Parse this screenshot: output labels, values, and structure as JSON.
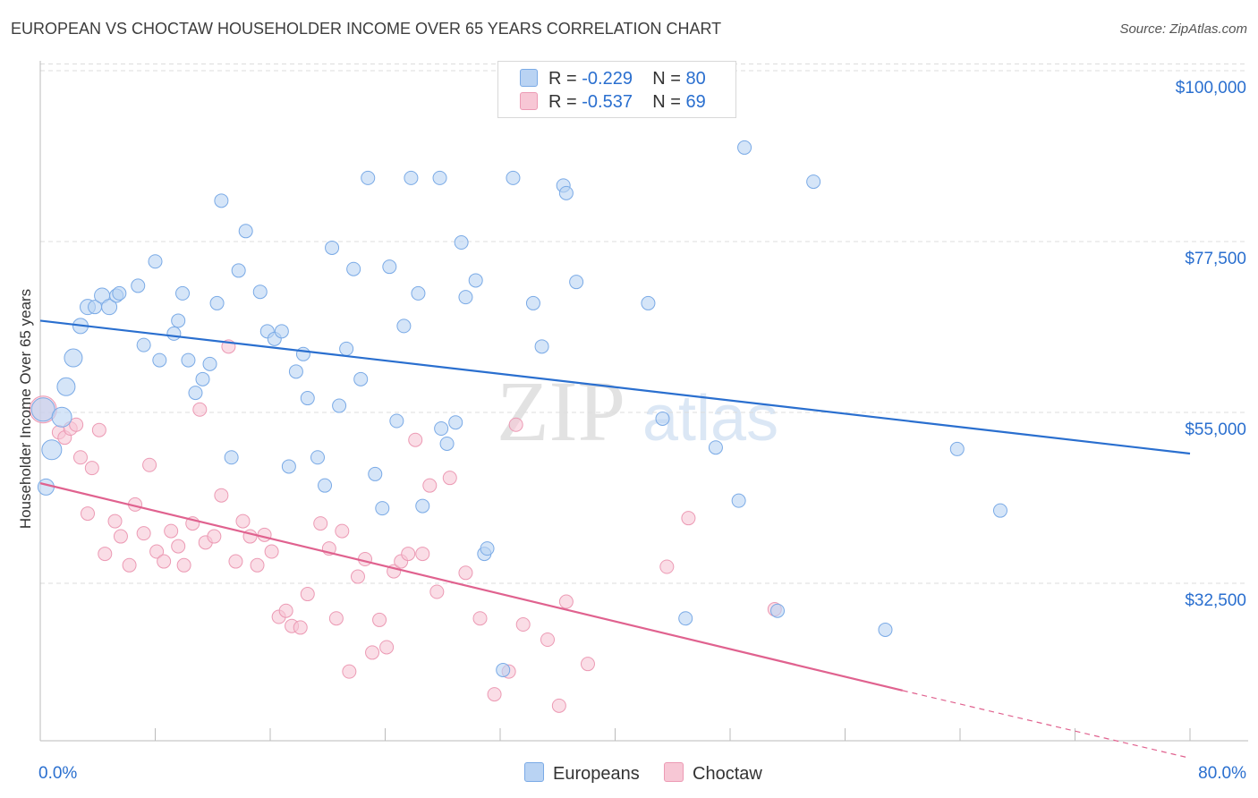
{
  "title": "EUROPEAN VS CHOCTAW HOUSEHOLDER INCOME OVER 65 YEARS CORRELATION CHART",
  "source": "Source: ZipAtlas.com",
  "colors": {
    "blue_fill": "#b9d3f3",
    "blue_stroke": "#7aaae6",
    "blue_line": "#2a6fcf",
    "pink_fill": "#f7c7d5",
    "pink_stroke": "#ec9ab4",
    "pink_line": "#e0628f",
    "axis_text": "#2a6fcf",
    "grid": "#dddddd"
  },
  "legend": {
    "rows": [
      {
        "r_label": "R = ",
        "r_value": "-0.229",
        "n_label": "N = ",
        "n_value": "80"
      },
      {
        "r_label": "R = ",
        "r_value": "-0.537",
        "n_label": "N = ",
        "n_value": "69"
      }
    ]
  },
  "bottom_legend": [
    "Europeans",
    "Choctaw"
  ],
  "chart_data": {
    "type": "scatter",
    "title": "EUROPEAN VS CHOCTAW HOUSEHOLDER INCOME OVER 65 YEARS CORRELATION CHART",
    "xlabel": "",
    "ylabel": "Householder Income Over 65 years",
    "xlim": [
      0,
      80
    ],
    "ylim": [
      13000,
      103000
    ],
    "x_tick_labels": [
      "0.0%",
      "80.0%"
    ],
    "y_ticks": [
      32500,
      55000,
      77500,
      100000
    ],
    "y_tick_labels": [
      "$32,500",
      "$55,000",
      "$77,500",
      "$100,000"
    ],
    "grid": true,
    "legend_placement": "top-center",
    "watermark": "ZIPatlas",
    "series": [
      {
        "name": "Europeans",
        "r": -0.229,
        "n": 80,
        "trend": {
          "x": [
            0,
            80
          ],
          "y": [
            69200,
            51700
          ]
        },
        "points": [
          [
            0.2,
            57.5,
            26
          ],
          [
            1.5,
            56.5,
            22
          ],
          [
            0.8,
            52.2,
            22
          ],
          [
            1.8,
            60.5,
            20
          ],
          [
            2.3,
            64.3,
            20
          ],
          [
            0.4,
            47.3,
            18
          ],
          [
            2.8,
            68.5,
            17
          ],
          [
            3.3,
            71.0,
            17
          ],
          [
            3.8,
            71.0,
            15
          ],
          [
            4.3,
            72.5,
            17
          ],
          [
            4.8,
            71.0,
            17
          ],
          [
            5.3,
            72.5,
            15
          ],
          [
            5.5,
            72.8,
            15
          ],
          [
            6.8,
            73.8,
            15
          ],
          [
            7.2,
            66.0,
            15
          ],
          [
            8.0,
            77.0,
            15
          ],
          [
            8.3,
            64.0,
            15
          ],
          [
            9.3,
            67.5,
            15
          ],
          [
            9.6,
            69.2,
            15
          ],
          [
            9.9,
            72.8,
            15
          ],
          [
            10.3,
            64.0,
            15
          ],
          [
            10.8,
            59.7,
            15
          ],
          [
            11.3,
            61.5,
            15
          ],
          [
            11.8,
            63.5,
            15
          ],
          [
            12.3,
            71.5,
            15
          ],
          [
            12.6,
            85.0,
            15
          ],
          [
            13.3,
            51.2,
            15
          ],
          [
            13.8,
            75.8,
            15
          ],
          [
            14.3,
            81.0,
            15
          ],
          [
            15.3,
            73.0,
            15
          ],
          [
            15.8,
            67.8,
            15
          ],
          [
            16.3,
            66.8,
            15
          ],
          [
            16.8,
            67.8,
            15
          ],
          [
            17.3,
            50.0,
            15
          ],
          [
            17.8,
            62.5,
            15
          ],
          [
            18.3,
            64.8,
            15
          ],
          [
            18.6,
            59.0,
            15
          ],
          [
            19.3,
            51.2,
            15
          ],
          [
            19.8,
            47.5,
            15
          ],
          [
            20.3,
            78.8,
            15
          ],
          [
            20.8,
            58.0,
            15
          ],
          [
            21.3,
            65.5,
            15
          ],
          [
            21.8,
            76.0,
            15
          ],
          [
            22.3,
            61.5,
            15
          ],
          [
            22.8,
            88.0,
            15
          ],
          [
            23.3,
            49.0,
            15
          ],
          [
            23.8,
            44.5,
            15
          ],
          [
            24.3,
            76.3,
            15
          ],
          [
            24.8,
            56.0,
            15
          ],
          [
            25.3,
            68.5,
            15
          ],
          [
            25.8,
            88.0,
            15
          ],
          [
            26.3,
            72.8,
            15
          ],
          [
            26.6,
            44.8,
            15
          ],
          [
            27.8,
            88.0,
            15
          ],
          [
            27.9,
            55.0,
            15
          ],
          [
            28.3,
            53.0,
            15
          ],
          [
            28.9,
            55.8,
            15
          ],
          [
            29.3,
            79.5,
            15
          ],
          [
            29.6,
            72.3,
            15
          ],
          [
            30.3,
            74.5,
            15
          ],
          [
            30.9,
            38.5,
            15
          ],
          [
            31.1,
            39.2,
            15
          ],
          [
            32.2,
            23.2,
            15
          ],
          [
            32.9,
            88.0,
            15
          ],
          [
            34.3,
            71.5,
            15
          ],
          [
            34.9,
            65.8,
            15
          ],
          [
            36.4,
            87.0,
            15
          ],
          [
            36.6,
            86.0,
            15
          ],
          [
            37.3,
            74.3,
            15
          ],
          [
            42.3,
            71.5,
            15
          ],
          [
            43.3,
            56.3,
            15
          ],
          [
            44.9,
            30.0,
            15
          ],
          [
            47.0,
            52.5,
            15
          ],
          [
            49.0,
            92.0,
            15
          ],
          [
            48.6,
            45.5,
            15
          ],
          [
            51.3,
            31.0,
            15
          ],
          [
            53.8,
            87.5,
            15
          ],
          [
            58.8,
            28.5,
            15
          ],
          [
            63.8,
            52.3,
            15
          ],
          [
            66.8,
            44.2,
            15
          ]
        ]
      },
      {
        "name": "Choctaw",
        "r": -0.537,
        "n": 69,
        "trend": {
          "x": [
            0,
            60
          ],
          "y": [
            47800,
            20500
          ]
        },
        "trend_dashed": {
          "x": [
            60,
            80
          ],
          "y": [
            20500,
            11600
          ]
        },
        "points": [
          [
            0.2,
            57.5,
            30
          ],
          [
            1.3,
            54.5,
            15
          ],
          [
            1.7,
            53.8,
            15
          ],
          [
            2.1,
            55.0,
            15
          ],
          [
            2.5,
            55.5,
            15
          ],
          [
            2.8,
            51.2,
            15
          ],
          [
            3.3,
            43.8,
            15
          ],
          [
            3.6,
            49.8,
            15
          ],
          [
            4.1,
            54.8,
            15
          ],
          [
            4.5,
            38.5,
            15
          ],
          [
            5.2,
            42.8,
            15
          ],
          [
            5.6,
            40.8,
            15
          ],
          [
            6.2,
            37.0,
            15
          ],
          [
            6.6,
            45.0,
            15
          ],
          [
            7.2,
            41.2,
            15
          ],
          [
            7.6,
            50.2,
            15
          ],
          [
            8.1,
            38.8,
            15
          ],
          [
            8.6,
            37.5,
            15
          ],
          [
            9.1,
            41.5,
            15
          ],
          [
            9.6,
            39.5,
            15
          ],
          [
            10.0,
            37.0,
            15
          ],
          [
            10.6,
            42.5,
            15
          ],
          [
            11.1,
            57.5,
            15
          ],
          [
            11.5,
            40.0,
            15
          ],
          [
            12.1,
            40.8,
            15
          ],
          [
            12.6,
            46.2,
            15
          ],
          [
            13.1,
            65.8,
            15
          ],
          [
            13.6,
            37.5,
            15
          ],
          [
            14.1,
            42.8,
            15
          ],
          [
            14.6,
            40.8,
            15
          ],
          [
            15.1,
            37.0,
            15
          ],
          [
            15.6,
            41.0,
            15
          ],
          [
            16.1,
            38.8,
            15
          ],
          [
            16.6,
            30.2,
            15
          ],
          [
            17.1,
            31.0,
            15
          ],
          [
            17.5,
            29.0,
            15
          ],
          [
            18.1,
            28.8,
            15
          ],
          [
            18.6,
            33.2,
            15
          ],
          [
            19.5,
            42.5,
            15
          ],
          [
            20.1,
            39.2,
            15
          ],
          [
            20.6,
            30.0,
            15
          ],
          [
            21.0,
            41.5,
            15
          ],
          [
            21.5,
            23.0,
            15
          ],
          [
            22.1,
            35.5,
            15
          ],
          [
            22.6,
            37.8,
            15
          ],
          [
            23.1,
            25.5,
            15
          ],
          [
            23.6,
            29.8,
            15
          ],
          [
            24.1,
            26.2,
            15
          ],
          [
            24.6,
            36.2,
            15
          ],
          [
            25.1,
            37.5,
            15
          ],
          [
            25.6,
            38.5,
            15
          ],
          [
            26.1,
            53.5,
            15
          ],
          [
            26.6,
            38.5,
            15
          ],
          [
            27.1,
            47.5,
            15
          ],
          [
            27.6,
            33.5,
            15
          ],
          [
            28.5,
            48.5,
            15
          ],
          [
            29.6,
            36.0,
            15
          ],
          [
            30.6,
            30.0,
            15
          ],
          [
            31.6,
            20.0,
            15
          ],
          [
            32.6,
            23.0,
            15
          ],
          [
            33.1,
            55.5,
            15
          ],
          [
            33.6,
            29.2,
            15
          ],
          [
            35.3,
            27.2,
            15
          ],
          [
            36.1,
            18.5,
            15
          ],
          [
            36.6,
            32.2,
            15
          ],
          [
            38.1,
            24.0,
            15
          ],
          [
            43.6,
            36.8,
            15
          ],
          [
            45.1,
            43.2,
            15
          ],
          [
            51.1,
            31.2,
            15
          ]
        ]
      }
    ]
  }
}
